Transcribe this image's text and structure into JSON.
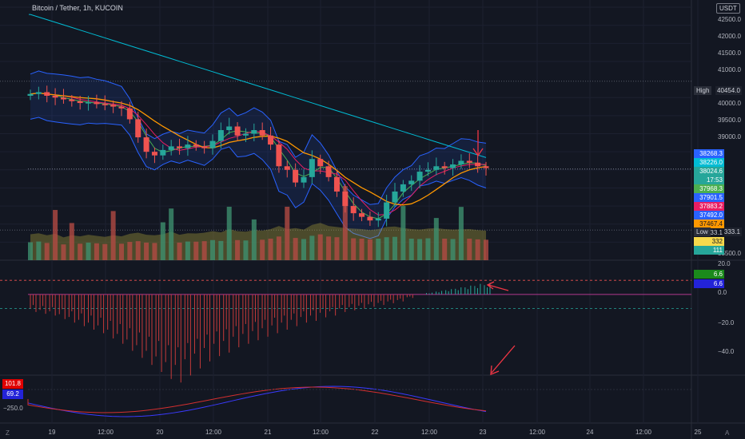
{
  "header": {
    "title": "Bitcoin / Tether, 1h, KUCOIN",
    "currency": "USDT"
  },
  "colors": {
    "background": "#131722",
    "up": "#26a69a",
    "down": "#ef5350",
    "volume_up": "#3d8f6e",
    "volume_down": "#b24a44",
    "bb_band": "#2962ff",
    "ma_long": "#00bcd4",
    "ma_pink": "#e91e63",
    "ma_orange": "#ff9800",
    "ma_green": "#4caf50",
    "arrow": "#f23645"
  },
  "price_axis": {
    "labels": [
      "42500.0",
      "42000.0",
      "41500.0",
      "41000.0",
      "40000.0",
      "39500.0",
      "39000.0",
      "35500.0"
    ]
  },
  "price_tags": [
    {
      "value": "38268.3",
      "bg": "#2962ff",
      "fg": "#ffffff"
    },
    {
      "value": "38226.0",
      "bg": "#00bcd4",
      "fg": "#ffffff"
    },
    {
      "value": "38024.6",
      "bg": "#26a69a",
      "fg": "#ffffff"
    },
    {
      "value": "17:53",
      "bg": "#26a69a",
      "fg": "#ffffff"
    },
    {
      "value": "37968.3",
      "bg": "#4caf50",
      "fg": "#ffffff"
    },
    {
      "value": "37901.5",
      "bg": "#2962ff",
      "fg": "#ffffff"
    },
    {
      "value": "37883.2",
      "bg": "#e91e63",
      "fg": "#ffffff"
    },
    {
      "value": "37492.0",
      "bg": "#2962ff",
      "fg": "#ffffff"
    },
    {
      "value": "37467.4",
      "bg": "#ff9800",
      "fg": "#131722"
    },
    {
      "value": "36333.1",
      "bg": "#131722",
      "fg": "#d1d4dc"
    },
    {
      "value": "332",
      "bg": "#f7d94c",
      "fg": "#131722"
    },
    {
      "value": "111",
      "bg": "#26a69a",
      "fg": "#ffffff"
    }
  ],
  "high": {
    "label": "High",
    "value": "40454.0"
  },
  "low": {
    "label": "Low",
    "value": "36333.1"
  },
  "oscillator": {
    "axis_labels": [
      "20.0",
      "0.0",
      "−20.0",
      "−40.0"
    ],
    "tag_top": {
      "value": "6.6",
      "bg": "#1b8a1b"
    },
    "tag_bottom": {
      "value": "6.6",
      "bg": "#2323d8"
    }
  },
  "third_pane": {
    "tag_red": {
      "value": "101.8",
      "bg": "#e00000"
    },
    "tag_blue": {
      "value": "69.2",
      "bg": "#2323d8"
    },
    "axis_label": "−250.0"
  },
  "time_axis": {
    "labels": [
      "19",
      "12:00",
      "20",
      "12:00",
      "21",
      "12:00",
      "22",
      "12:00",
      "23",
      "12:00",
      "24",
      "12:00",
      "25"
    ]
  },
  "footer": {
    "left_icon": "Z",
    "right_icon": "A"
  },
  "chart_data": {
    "type": "candlestick",
    "title": "Bitcoin / Tether, 1h, KUCOIN",
    "close_price_series": [
      40100,
      40150,
      40050,
      40000,
      39950,
      39900,
      39850,
      39870,
      39820,
      39800,
      39750,
      39700,
      39400,
      38900,
      38500,
      38400,
      38550,
      38650,
      38600,
      38700,
      38650,
      38600,
      38800,
      39100,
      39200,
      38950,
      39000,
      39100,
      38950,
      38700,
      38100,
      38000,
      37650,
      37800,
      38300,
      38100,
      37800,
      37400,
      37000,
      36800,
      36700,
      36600,
      36650,
      37100,
      37400,
      37600,
      37700,
      37950,
      38000,
      38100,
      38050,
      38150,
      38250,
      38200,
      38100,
      38050
    ],
    "volume_series": [
      250,
      260,
      240,
      255,
      220,
      240,
      230,
      245,
      235,
      225,
      240,
      230,
      255,
      265,
      245,
      240,
      250,
      275,
      245,
      260,
      258,
      265,
      280,
      268,
      300,
      280,
      275,
      290,
      285,
      300,
      330,
      300,
      310,
      295,
      340,
      360,
      330,
      320,
      310,
      305,
      300,
      290,
      300,
      320,
      325,
      310,
      300,
      295,
      305,
      310,
      300,
      295,
      298,
      300,
      290,
      285
    ],
    "high": 40454.0,
    "low": 36333.1,
    "last": 38024.6,
    "ylim": [
      35500,
      42700
    ],
    "oscillator_values": [
      -10,
      -11,
      -12,
      -14,
      -16,
      -18,
      -20,
      -22,
      -25,
      -28,
      -32,
      -36,
      -40,
      -44,
      -48,
      -50,
      -46,
      -42,
      -38,
      -35,
      -33,
      -30,
      -28,
      -26,
      -24,
      -22,
      -20,
      -18,
      -16,
      -15,
      -13,
      -12,
      -10,
      -9,
      -8,
      -7,
      -6,
      -5,
      -4,
      -2,
      0,
      1,
      2,
      3,
      4,
      5,
      6,
      6.6
    ],
    "oscillator_ylim": [
      -55,
      22
    ],
    "third_pane_red": [
      101.8
    ],
    "third_pane_blue": [
      69.2
    ]
  }
}
